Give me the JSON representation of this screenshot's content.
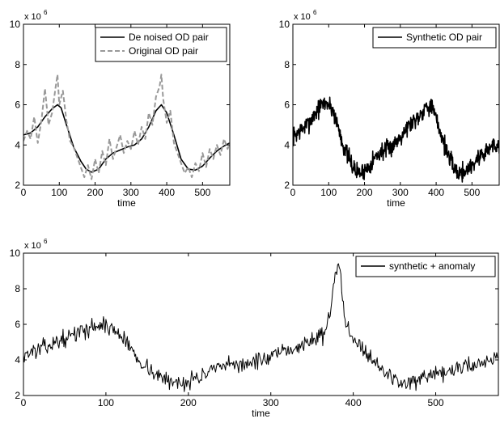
{
  "chart_data": [
    {
      "type": "line",
      "xlabel": "time",
      "ylabel": "",
      "xlim": [
        0,
        576
      ],
      "ylim": [
        2000000,
        10000000
      ],
      "xticks": [
        0,
        100,
        200,
        300,
        400,
        500
      ],
      "yticks": [
        2,
        4,
        6,
        8,
        10
      ],
      "y_multiplier": "x 10",
      "y_multiplier_exp": "6",
      "grid": false,
      "legend": "top-right",
      "series": [
        {
          "name": "De noised OD pair",
          "color": "#000000",
          "style": "solid",
          "points": [
            [
              0,
              4500000
            ],
            [
              20,
              4600000
            ],
            [
              40,
              4900000
            ],
            [
              60,
              5400000
            ],
            [
              80,
              5800000
            ],
            [
              95,
              6000000
            ],
            [
              105,
              5850000
            ],
            [
              120,
              5000000
            ],
            [
              140,
              3900000
            ],
            [
              160,
              3200000
            ],
            [
              175,
              2800000
            ],
            [
              190,
              2650000
            ],
            [
              210,
              2800000
            ],
            [
              230,
              3300000
            ],
            [
              250,
              3600000
            ],
            [
              270,
              3750000
            ],
            [
              290,
              3900000
            ],
            [
              310,
              4000000
            ],
            [
              330,
              4300000
            ],
            [
              350,
              4900000
            ],
            [
              370,
              5700000
            ],
            [
              385,
              6000000
            ],
            [
              400,
              5600000
            ],
            [
              420,
              4500000
            ],
            [
              440,
              3300000
            ],
            [
              460,
              2800000
            ],
            [
              480,
              2750000
            ],
            [
              500,
              2950000
            ],
            [
              520,
              3350000
            ],
            [
              540,
              3700000
            ],
            [
              560,
              3950000
            ],
            [
              576,
              4100000
            ]
          ]
        },
        {
          "name": "Original OD pair",
          "color": "#999999",
          "style": "dashed",
          "points": [
            [
              0,
              4200000
            ],
            [
              10,
              4700000
            ],
            [
              20,
              4300000
            ],
            [
              30,
              5400000
            ],
            [
              40,
              4100000
            ],
            [
              50,
              5200000
            ],
            [
              60,
              6800000
            ],
            [
              70,
              5000000
            ],
            [
              80,
              5600000
            ],
            [
              90,
              6900000
            ],
            [
              95,
              7500000
            ],
            [
              100,
              6000000
            ],
            [
              110,
              6700000
            ],
            [
              120,
              5200000
            ],
            [
              130,
              4200000
            ],
            [
              140,
              3900000
            ],
            [
              150,
              3400000
            ],
            [
              160,
              2900000
            ],
            [
              170,
              2400000
            ],
            [
              180,
              3000000
            ],
            [
              190,
              2300000
            ],
            [
              200,
              3300000
            ],
            [
              210,
              2600000
            ],
            [
              220,
              3700000
            ],
            [
              230,
              3000000
            ],
            [
              240,
              4300000
            ],
            [
              250,
              3300000
            ],
            [
              260,
              3900000
            ],
            [
              270,
              4500000
            ],
            [
              280,
              3600000
            ],
            [
              290,
              4200000
            ],
            [
              300,
              3800000
            ],
            [
              310,
              4700000
            ],
            [
              320,
              4000000
            ],
            [
              330,
              4900000
            ],
            [
              340,
              4300000
            ],
            [
              350,
              5600000
            ],
            [
              360,
              5000000
            ],
            [
              370,
              6400000
            ],
            [
              380,
              6900000
            ],
            [
              385,
              7500000
            ],
            [
              390,
              6300000
            ],
            [
              400,
              5100000
            ],
            [
              410,
              5700000
            ],
            [
              420,
              4100000
            ],
            [
              430,
              3600000
            ],
            [
              440,
              3100000
            ],
            [
              450,
              2600000
            ],
            [
              460,
              2900000
            ],
            [
              470,
              2400000
            ],
            [
              480,
              3100000
            ],
            [
              490,
              2700000
            ],
            [
              500,
              3600000
            ],
            [
              510,
              2900000
            ],
            [
              520,
              3800000
            ],
            [
              530,
              3300000
            ],
            [
              540,
              4000000
            ],
            [
              550,
              3500000
            ],
            [
              560,
              4300000
            ],
            [
              570,
              3800000
            ],
            [
              576,
              4100000
            ]
          ]
        }
      ]
    },
    {
      "type": "line",
      "xlabel": "time",
      "ylabel": "",
      "xlim": [
        0,
        576
      ],
      "ylim": [
        2000000,
        10000000
      ],
      "xticks": [
        0,
        100,
        200,
        300,
        400,
        500
      ],
      "yticks": [
        2,
        4,
        6,
        8,
        10
      ],
      "y_multiplier": "x 10",
      "y_multiplier_exp": "6",
      "grid": false,
      "legend": "top-right",
      "series": [
        {
          "name": "Synthetic OD pair",
          "color": "#000000",
          "style": "solid",
          "noise": 0.45,
          "seed": 7,
          "points": [
            [
              0,
              4400000
            ],
            [
              20,
              4700000
            ],
            [
              40,
              5000000
            ],
            [
              60,
              5500000
            ],
            [
              80,
              6000000
            ],
            [
              95,
              6100000
            ],
            [
              110,
              5800000
            ],
            [
              125,
              5000000
            ],
            [
              140,
              4000000
            ],
            [
              160,
              3200000
            ],
            [
              175,
              2700000
            ],
            [
              190,
              2600000
            ],
            [
              210,
              2900000
            ],
            [
              230,
              3400000
            ],
            [
              250,
              3700000
            ],
            [
              270,
              3800000
            ],
            [
              290,
              4200000
            ],
            [
              310,
              4700000
            ],
            [
              330,
              5100000
            ],
            [
              350,
              5400000
            ],
            [
              370,
              5900000
            ],
            [
              385,
              6000000
            ],
            [
              400,
              5300000
            ],
            [
              420,
              4200000
            ],
            [
              440,
              3200000
            ],
            [
              460,
              2600000
            ],
            [
              480,
              2700000
            ],
            [
              500,
              3000000
            ],
            [
              520,
              3400000
            ],
            [
              540,
              3700000
            ],
            [
              560,
              4000000
            ],
            [
              576,
              4000000
            ]
          ]
        }
      ]
    },
    {
      "type": "line",
      "xlabel": "time",
      "ylabel": "",
      "xlim": [
        0,
        576
      ],
      "ylim": [
        2000000,
        10000000
      ],
      "xticks": [
        0,
        100,
        200,
        300,
        400,
        500
      ],
      "yticks": [
        2,
        4,
        6,
        8,
        10
      ],
      "y_multiplier": "x 10",
      "y_multiplier_exp": "6",
      "grid": false,
      "legend": "top-right",
      "series": [
        {
          "name": "synthetic + anomaly",
          "color": "#000000",
          "style": "solid",
          "noise": 0.45,
          "seed": 13,
          "points": [
            [
              0,
              4300000
            ],
            [
              20,
              4600000
            ],
            [
              40,
              5000000
            ],
            [
              60,
              5400000
            ],
            [
              80,
              5800000
            ],
            [
              95,
              6000000
            ],
            [
              110,
              5700000
            ],
            [
              125,
              5000000
            ],
            [
              140,
              4000000
            ],
            [
              160,
              3200000
            ],
            [
              175,
              2800000
            ],
            [
              190,
              2700000
            ],
            [
              210,
              3000000
            ],
            [
              230,
              3400000
            ],
            [
              250,
              3700000
            ],
            [
              270,
              3800000
            ],
            [
              290,
              4000000
            ],
            [
              310,
              4300000
            ],
            [
              330,
              4700000
            ],
            [
              350,
              5100000
            ],
            [
              365,
              5500000
            ],
            [
              372,
              6500000
            ],
            [
              377,
              8600000
            ],
            [
              381,
              9200000
            ],
            [
              385,
              8600000
            ],
            [
              390,
              6300000
            ],
            [
              400,
              5300000
            ],
            [
              420,
              4200000
            ],
            [
              440,
              3200000
            ],
            [
              460,
              2700000
            ],
            [
              480,
              2800000
            ],
            [
              500,
              3100000
            ],
            [
              520,
              3400000
            ],
            [
              540,
              3700000
            ],
            [
              560,
              3900000
            ],
            [
              576,
              4200000
            ]
          ]
        }
      ]
    }
  ]
}
